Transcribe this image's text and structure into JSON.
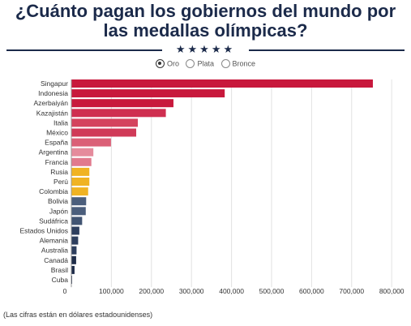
{
  "title_line1": "¿Cuánto pagan los gobiernos del mundo por",
  "title_line2": "las medallas olímpicas?",
  "stars": "★★★★★",
  "legend": [
    {
      "label": "Oro",
      "selected": true
    },
    {
      "label": "Plata",
      "selected": false
    },
    {
      "label": "Bronce",
      "selected": false
    }
  ],
  "footnote": "(Las cifras están en dólares estadounidenses)",
  "chart_data": {
    "type": "bar",
    "orientation": "horizontal",
    "categories": [
      "Singapur",
      "Indonesia",
      "Azerbaiyán",
      "Kazajistán",
      "Italia",
      "México",
      "España",
      "Argentina",
      "Francia",
      "Rusia",
      "Perú",
      "Colombia",
      "Bolivia",
      "Japón",
      "Sudáfrica",
      "Estados Unidos",
      "Alemania",
      "Australia",
      "Canadá",
      "Brasil",
      "Cuba"
    ],
    "values": [
      753000,
      383000,
      255000,
      236000,
      166000,
      162000,
      99000,
      55000,
      50000,
      45000,
      45000,
      42000,
      37000,
      36000,
      27000,
      20000,
      17000,
      13000,
      12000,
      8000,
      2000
    ],
    "colors": [
      "#c8183c",
      "#c8183c",
      "#c8183c",
      "#cf2f50",
      "#d4435e",
      "#d03a58",
      "#db6077",
      "#e58b9c",
      "#e17a8d",
      "#f0b323",
      "#f0b323",
      "#f0b323",
      "#4b5e7c",
      "#4b5e7c",
      "#415472",
      "#2d3e5e",
      "#2d3e5e",
      "#2d3e5e",
      "#1f2d4a",
      "#1f2d4a",
      "#1f2d4a"
    ],
    "xlim": [
      0,
      830000
    ],
    "xticks": [
      0,
      100000,
      200000,
      300000,
      400000,
      500000,
      600000,
      700000,
      800000
    ],
    "xtick_labels": [
      "0",
      "100,000",
      "200,000",
      "300,000",
      "400,000",
      "500,000",
      "600,000",
      "700,000",
      "800,000"
    ],
    "grid": true
  }
}
